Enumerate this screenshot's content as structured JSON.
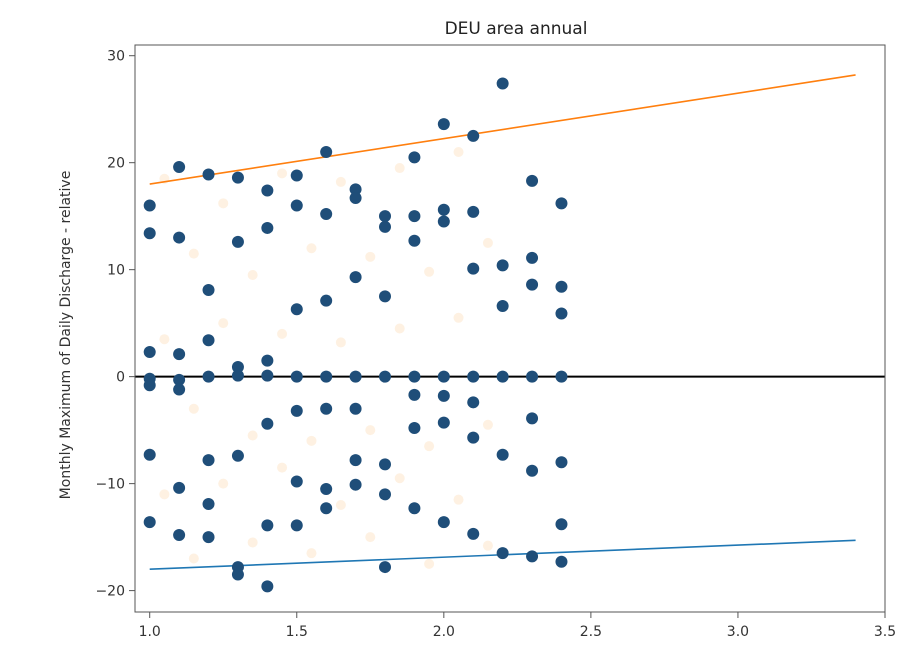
{
  "chart_data": {
    "type": "scatter",
    "title": "DEU area annual",
    "xlabel": "",
    "ylabel": "Monthly Maximum of Daily Discharge - relative",
    "xlim": [
      0.95,
      3.5
    ],
    "ylim": [
      -22,
      31
    ],
    "xticks": [
      "1.0",
      "1.5",
      "2.0",
      "2.5",
      "3.0",
      "3.5"
    ],
    "yticks": [
      "−20",
      "−10",
      "0",
      "10",
      "20",
      "30"
    ],
    "xtick_values": [
      1.0,
      1.5,
      2.0,
      2.5,
      3.0,
      3.5
    ],
    "ytick_values": [
      -20,
      -10,
      0,
      10,
      20,
      30
    ],
    "grid": false,
    "colors": {
      "points": "#1f4e79",
      "upper_line": "#ff7f0e",
      "lower_line": "#1f77b4",
      "zero_line": "#000000",
      "faint_points": "#fde3c6"
    },
    "points": [
      [
        1.0,
        16.0
      ],
      [
        1.0,
        13.4
      ],
      [
        1.0,
        2.3
      ],
      [
        1.0,
        -0.2
      ],
      [
        1.0,
        -0.8
      ],
      [
        1.0,
        -7.3
      ],
      [
        1.0,
        -13.6
      ],
      [
        1.1,
        19.6
      ],
      [
        1.1,
        13.0
      ],
      [
        1.1,
        2.1
      ],
      [
        1.1,
        -0.3
      ],
      [
        1.1,
        -1.2
      ],
      [
        1.1,
        -10.4
      ],
      [
        1.1,
        -14.8
      ],
      [
        1.2,
        18.9
      ],
      [
        1.2,
        8.1
      ],
      [
        1.2,
        3.4
      ],
      [
        1.2,
        0.0
      ],
      [
        1.2,
        -7.8
      ],
      [
        1.2,
        -11.9
      ],
      [
        1.2,
        -15.0
      ],
      [
        1.3,
        18.6
      ],
      [
        1.3,
        12.6
      ],
      [
        1.3,
        0.9
      ],
      [
        1.3,
        0.1
      ],
      [
        1.3,
        -7.4
      ],
      [
        1.3,
        -17.8
      ],
      [
        1.3,
        -18.5
      ],
      [
        1.4,
        17.4
      ],
      [
        1.4,
        13.9
      ],
      [
        1.4,
        1.5
      ],
      [
        1.4,
        0.1
      ],
      [
        1.4,
        -4.4
      ],
      [
        1.4,
        -13.9
      ],
      [
        1.4,
        -19.6
      ],
      [
        1.5,
        18.8
      ],
      [
        1.5,
        16.0
      ],
      [
        1.5,
        6.3
      ],
      [
        1.5,
        0.0
      ],
      [
        1.5,
        -3.2
      ],
      [
        1.5,
        -9.8
      ],
      [
        1.5,
        -13.9
      ],
      [
        1.6,
        21.0
      ],
      [
        1.6,
        15.2
      ],
      [
        1.6,
        7.1
      ],
      [
        1.6,
        0.0
      ],
      [
        1.6,
        -3.0
      ],
      [
        1.6,
        -10.5
      ],
      [
        1.6,
        -12.3
      ],
      [
        1.7,
        17.5
      ],
      [
        1.7,
        16.7
      ],
      [
        1.7,
        9.3
      ],
      [
        1.7,
        0.0
      ],
      [
        1.7,
        -3.0
      ],
      [
        1.7,
        -7.8
      ],
      [
        1.7,
        -10.1
      ],
      [
        1.8,
        15.0
      ],
      [
        1.8,
        14.0
      ],
      [
        1.8,
        7.5
      ],
      [
        1.8,
        0.0
      ],
      [
        1.8,
        -8.2
      ],
      [
        1.8,
        -11.0
      ],
      [
        1.8,
        -17.8
      ],
      [
        1.9,
        20.5
      ],
      [
        1.9,
        15.0
      ],
      [
        1.9,
        12.7
      ],
      [
        1.9,
        0.0
      ],
      [
        1.9,
        -1.7
      ],
      [
        1.9,
        -4.8
      ],
      [
        1.9,
        -12.3
      ],
      [
        2.0,
        23.6
      ],
      [
        2.0,
        15.6
      ],
      [
        2.0,
        14.5
      ],
      [
        2.0,
        0.0
      ],
      [
        2.0,
        -1.8
      ],
      [
        2.0,
        -4.3
      ],
      [
        2.0,
        -13.6
      ],
      [
        2.1,
        22.5
      ],
      [
        2.1,
        15.4
      ],
      [
        2.1,
        10.1
      ],
      [
        2.1,
        0.0
      ],
      [
        2.1,
        -2.4
      ],
      [
        2.1,
        -5.7
      ],
      [
        2.1,
        -14.7
      ],
      [
        2.2,
        27.4
      ],
      [
        2.2,
        10.4
      ],
      [
        2.2,
        6.6
      ],
      [
        2.2,
        0.0
      ],
      [
        2.2,
        -7.3
      ],
      [
        2.2,
        -16.5
      ],
      [
        2.3,
        18.3
      ],
      [
        2.3,
        11.1
      ],
      [
        2.3,
        8.6
      ],
      [
        2.3,
        0.0
      ],
      [
        2.3,
        -3.9
      ],
      [
        2.3,
        -8.8
      ],
      [
        2.3,
        -16.8
      ],
      [
        2.4,
        16.2
      ],
      [
        2.4,
        8.4
      ],
      [
        2.4,
        5.9
      ],
      [
        2.4,
        0.0
      ],
      [
        2.4,
        -8.0
      ],
      [
        2.4,
        -13.8
      ],
      [
        2.4,
        -17.3
      ]
    ],
    "faint_points": [
      [
        1.05,
        18.5
      ],
      [
        1.25,
        16.2
      ],
      [
        1.45,
        19.0
      ],
      [
        1.65,
        18.2
      ],
      [
        1.85,
        19.5
      ],
      [
        2.05,
        21.0
      ],
      [
        1.15,
        11.5
      ],
      [
        1.35,
        9.5
      ],
      [
        1.55,
        12.0
      ],
      [
        1.75,
        11.2
      ],
      [
        1.95,
        9.8
      ],
      [
        2.15,
        12.5
      ],
      [
        1.05,
        3.5
      ],
      [
        1.25,
        5.0
      ],
      [
        1.45,
        4.0
      ],
      [
        1.65,
        3.2
      ],
      [
        1.85,
        4.5
      ],
      [
        2.05,
        5.5
      ],
      [
        1.15,
        -3.0
      ],
      [
        1.35,
        -5.5
      ],
      [
        1.55,
        -6.0
      ],
      [
        1.75,
        -5.0
      ],
      [
        1.95,
        -6.5
      ],
      [
        2.15,
        -4.5
      ],
      [
        1.05,
        -11.0
      ],
      [
        1.25,
        -10.0
      ],
      [
        1.45,
        -8.5
      ],
      [
        1.65,
        -12.0
      ],
      [
        1.85,
        -9.5
      ],
      [
        2.05,
        -11.5
      ],
      [
        1.15,
        -17.0
      ],
      [
        1.35,
        -15.5
      ],
      [
        1.55,
        -16.5
      ],
      [
        1.75,
        -15.0
      ],
      [
        1.95,
        -17.5
      ],
      [
        2.15,
        -15.8
      ]
    ],
    "lines": [
      {
        "color": "upper",
        "x": [
          1.0,
          3.4
        ],
        "y": [
          18.0,
          28.2
        ]
      },
      {
        "color": "lower",
        "x": [
          1.0,
          3.4
        ],
        "y": [
          -18.0,
          -15.3
        ]
      }
    ],
    "hline": 0
  }
}
